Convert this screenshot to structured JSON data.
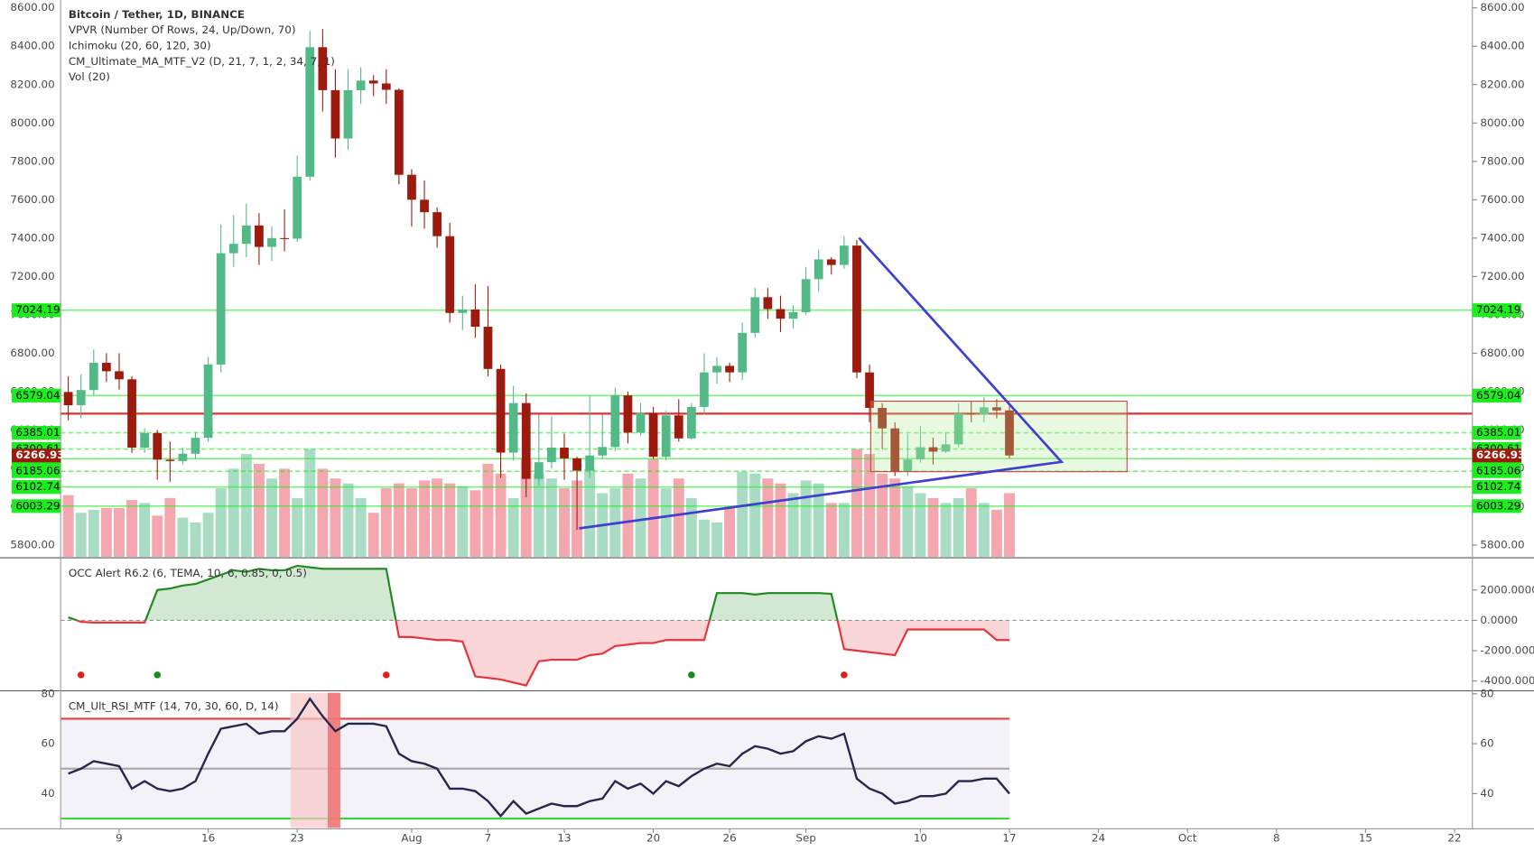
{
  "chart_data": [
    {
      "type": "candlestick",
      "title": "Bitcoin / Tether, 1D, BINANCE",
      "legend": [
        "VPVR (Number Of Rows, 24, Up/Down, 70)",
        "Ichimoku (20, 60, 120, 30)",
        "CM_Ultimate_MA_MTF_V2 (D, 21, 7, 1, 2, 34, 7, 1)",
        "Vol (20)"
      ],
      "open": [
        6598,
        6529,
        6608,
        6750,
        6706,
        6664,
        6308,
        6384,
        6245,
        6238,
        6276,
        6359,
        6741,
        7321,
        7370,
        7466,
        7354,
        7400,
        7397,
        7720,
        8395,
        8171,
        7919,
        8171,
        8221,
        8206,
        8173,
        7730,
        7600,
        7535,
        7410,
        7010,
        7028,
        6938,
        6718,
        6282,
        6540,
        6145,
        6232,
        6308,
        6252,
        6188,
        6267,
        6311,
        6580,
        6386,
        6488,
        6260,
        6476,
        6356,
        6520,
        6700,
        6734,
        6700,
        6906,
        7092,
        7030,
        6980,
        7014,
        7186,
        7289,
        7260,
        7361,
        6700,
        6515,
        6408,
        6182,
        6246,
        6310,
        6287,
        6325,
        6485,
        6480,
        6518,
        6502
      ],
      "high": [
        6680,
        6690,
        6820,
        6800,
        6800,
        6680,
        6410,
        6400,
        6340,
        6310,
        6390,
        6780,
        7470,
        7520,
        7580,
        7530,
        7460,
        7550,
        7830,
        8480,
        8490,
        8280,
        8280,
        8290,
        8250,
        8280,
        8180,
        7760,
        7700,
        7560,
        7480,
        7100,
        7160,
        7150,
        6740,
        6630,
        6590,
        6480,
        6470,
        6380,
        6260,
        6580,
        6480,
        6620,
        6600,
        6540,
        6520,
        6500,
        6560,
        6540,
        6800,
        6780,
        6750,
        6960,
        7140,
        7140,
        7100,
        7050,
        7250,
        7340,
        7300,
        7410,
        7390,
        6740,
        6540,
        6440,
        6380,
        6420,
        6360,
        6390,
        6540,
        6550,
        6570,
        6560,
        6540
      ],
      "low": [
        6450,
        6460,
        6580,
        6650,
        6610,
        6280,
        6280,
        6140,
        6130,
        6220,
        6250,
        6340,
        6700,
        7250,
        7300,
        7260,
        7280,
        7330,
        7380,
        7700,
        8060,
        7820,
        7860,
        8100,
        8140,
        8100,
        7680,
        7460,
        7450,
        7350,
        6960,
        6920,
        6880,
        6680,
        6150,
        6240,
        6050,
        6110,
        6200,
        6140,
        5880,
        6150,
        6250,
        6290,
        6330,
        6370,
        6250,
        6240,
        6340,
        6350,
        6480,
        6640,
        6650,
        6660,
        6880,
        6980,
        6910,
        6930,
        7000,
        7120,
        7210,
        7240,
        6670,
        6440,
        6300,
        6160,
        6160,
        6230,
        6220,
        6280,
        6310,
        6440,
        6440,
        6460,
        6250
      ],
      "close": [
        6529,
        6608,
        6750,
        6706,
        6664,
        6308,
        6384,
        6245,
        6238,
        6276,
        6359,
        6741,
        7321,
        7370,
        7466,
        7354,
        7400,
        7397,
        7720,
        8395,
        8171,
        7919,
        8171,
        8221,
        8206,
        8173,
        7730,
        7600,
        7535,
        7410,
        7010,
        7028,
        6938,
        6718,
        6282,
        6540,
        6145,
        6232,
        6308,
        6252,
        6188,
        6267,
        6311,
        6580,
        6386,
        6488,
        6260,
        6476,
        6356,
        6520,
        6700,
        6734,
        6700,
        6906,
        7092,
        7030,
        6980,
        7014,
        7186,
        7289,
        7260,
        7361,
        6700,
        6515,
        6408,
        6182,
        6246,
        6310,
        6287,
        6325,
        6485,
        6480,
        6518,
        6502,
        6266.93
      ],
      "volume": [
        63,
        45,
        48,
        50,
        50,
        58,
        55,
        42,
        60,
        40,
        35,
        45,
        70,
        90,
        105,
        95,
        80,
        90,
        60,
        110,
        90,
        80,
        75,
        60,
        45,
        70,
        75,
        70,
        78,
        80,
        75,
        72,
        68,
        95,
        85,
        60,
        100,
        85,
        80,
        70,
        78,
        90,
        65,
        70,
        85,
        80,
        100,
        70,
        80,
        60,
        38,
        35,
        50,
        87,
        85,
        80,
        75,
        65,
        78,
        75,
        55,
        55,
        110,
        105,
        85,
        80,
        72,
        65,
        60,
        55,
        60,
        70,
        55,
        48,
        65
      ],
      "up_color": "#53b987",
      "down_color": "#9c1b0e",
      "volume_up_color": "#a8dcc3",
      "volume_down_color": "#f4a7af",
      "ylim": [
        5739,
        8641
      ],
      "yticks": [
        {
          "value": 5800,
          "label": "5800.00"
        },
        {
          "value": 6000,
          "label": "6000.00"
        },
        {
          "value": 6200,
          "label": "6200.00"
        },
        {
          "value": 6400,
          "label": "6400.00"
        },
        {
          "value": 6600,
          "label": "6600.00"
        },
        {
          "value": 6800,
          "label": "6800.00"
        },
        {
          "value": 7000,
          "label": "7000.00"
        },
        {
          "value": 7200,
          "label": "7200.00"
        },
        {
          "value": 7400,
          "label": "7400.00"
        },
        {
          "value": 7600,
          "label": "7600.00"
        },
        {
          "value": 7800,
          "label": "7800.00"
        },
        {
          "value": 8000,
          "label": "8000.00"
        },
        {
          "value": 8200,
          "label": "8200.00"
        },
        {
          "value": 8400,
          "label": "8400.00"
        },
        {
          "value": 8600,
          "label": "8600.00"
        }
      ],
      "xlim": [
        -0.6,
        110.4
      ],
      "xticks": [
        {
          "value": 4,
          "label": "9"
        },
        {
          "value": 11,
          "label": "16"
        },
        {
          "value": 18,
          "label": "23"
        },
        {
          "value": 27,
          "label": "Aug"
        },
        {
          "value": 33,
          "label": "7"
        },
        {
          "value": 39,
          "label": "13"
        },
        {
          "value": 46,
          "label": "20"
        },
        {
          "value": 52,
          "label": "26"
        },
        {
          "value": 58,
          "label": "Sep"
        },
        {
          "value": 67,
          "label": "10"
        },
        {
          "value": 74,
          "label": "17"
        },
        {
          "value": 81,
          "label": "24"
        },
        {
          "value": 88,
          "label": "Oct"
        },
        {
          "value": 95,
          "label": "8"
        },
        {
          "value": 102,
          "label": "15"
        },
        {
          "value": 109,
          "label": "22"
        }
      ],
      "levels": [
        7024.19,
        6579.04,
        6385.01,
        6300.61,
        6250.57,
        6185.06,
        6102.74,
        6003.29
      ],
      "level_color": "#1bef1b",
      "hline": 6485,
      "hline_color": "#e03030"
    },
    {
      "type": "line",
      "title": "OCC Alert R6.2 (6, TEMA, 10, 6, 0.85, 0, 0.5)",
      "values": [
        200,
        -100,
        -150,
        -150,
        -150,
        -150,
        -150,
        2000,
        2100,
        2300,
        2400,
        2700,
        3000,
        3300,
        3200,
        3400,
        3300,
        3300,
        3600,
        3500,
        3400,
        3400,
        3400,
        3400,
        3400,
        3400,
        -1100,
        -1100,
        -1200,
        -1300,
        -1300,
        -1400,
        -3700,
        -3800,
        -3900,
        -4100,
        -4300,
        -2700,
        -2600,
        -2600,
        -2600,
        -2300,
        -2200,
        -1700,
        -1600,
        -1500,
        -1500,
        -1300,
        -1300,
        -1300,
        -1300,
        1800,
        1800,
        1800,
        1700,
        1800,
        1800,
        1800,
        1800,
        1800,
        1750,
        -1900,
        -2000,
        -2100,
        -2200,
        -2300,
        -600,
        -600,
        -600,
        -600,
        -600,
        -600,
        -600,
        -1300,
        -1300
      ],
      "up_color": "#1f8a1f",
      "down_color": "#e8333a",
      "ylim": [
        -4650,
        4000
      ],
      "yticks": [
        {
          "value": 2000,
          "label": "2000.0000"
        },
        {
          "value": 0,
          "label": "0.0000"
        },
        {
          "value": -2000,
          "label": "-2000.0000"
        },
        {
          "value": -4000,
          "label": "-4000.0000"
        }
      ],
      "signal_x": [
        1,
        7,
        25,
        49,
        61
      ],
      "signal_level": -3600,
      "signal_colors": [
        "#e0201b",
        "#1a8a1a",
        "#e0201b",
        "#1a8a1a",
        "#e0201b"
      ]
    },
    {
      "type": "line",
      "title": "CM_Ult_RSI_MTF (14, 70, 30, 60, D, 14)",
      "values": [
        48,
        50,
        53,
        52,
        51,
        42,
        45,
        42,
        41,
        42,
        45,
        56,
        66,
        67,
        68,
        64,
        65,
        65,
        70,
        78,
        71,
        65,
        68,
        68,
        68,
        67,
        56,
        53,
        52,
        50,
        42,
        42,
        41,
        37,
        31,
        37,
        32,
        34,
        36,
        35,
        35,
        37,
        38,
        45,
        42,
        44,
        40,
        45,
        43,
        47,
        50,
        52,
        51,
        56,
        59,
        58,
        56,
        57,
        61,
        63,
        62,
        64,
        46,
        42,
        40,
        36,
        37,
        39,
        39,
        40,
        45,
        45,
        46,
        46,
        40
      ],
      "color": "#25274d",
      "ylim": [
        26.3,
        80.4
      ],
      "yticks": [
        40,
        60,
        80
      ],
      "levels": [
        70,
        50,
        30
      ],
      "level_colors": [
        "#e84040",
        "#aaaaaa",
        "#3ad43a"
      ]
    }
  ]
}
